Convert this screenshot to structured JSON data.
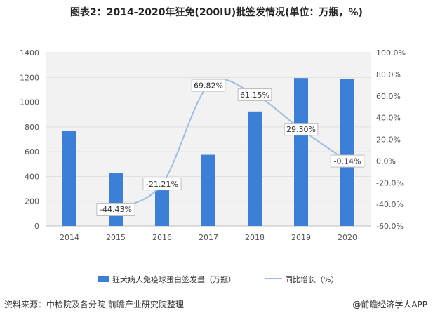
{
  "title": "图表2：2014-2020年狂免(200IU)批签发情况(单位：万瓶，%)",
  "source": "资料来源：中检院及各分院 前瞻产业研究院整理",
  "brand": "@前瞻经济学人APP",
  "colors": {
    "bar": "#3c7fd6",
    "line": "#9dbde6",
    "grid": "#dddddd",
    "plot_bg": "#f2f2f2"
  },
  "chart_data": {
    "type": "bar",
    "categories": [
      "2014",
      "2015",
      "2016",
      "2017",
      "2018",
      "2019",
      "2020"
    ],
    "series": [
      {
        "name": "狂犬病人免疫球蛋白签发量（万瓶）",
        "type": "bar",
        "axis": "left",
        "values": [
          770,
          425,
          335,
          575,
          925,
          1195,
          1190
        ]
      },
      {
        "name": "同比增长（%）",
        "type": "line",
        "axis": "right",
        "values": [
          null,
          -44.43,
          -21.21,
          69.82,
          61.15,
          29.3,
          -0.14
        ],
        "labels": [
          "",
          "-44.43%",
          "-21.21%",
          "69.82%",
          "61.15%",
          "29.30%",
          "-0.14%"
        ]
      }
    ],
    "left_axis": {
      "min": 0,
      "max": 1400,
      "step": 200,
      "ticks": [
        "0",
        "200",
        "400",
        "600",
        "800",
        "1000",
        "1200",
        "1400"
      ]
    },
    "right_axis": {
      "min": -60,
      "max": 100,
      "step": 20,
      "ticks": [
        "-60.0%",
        "-40.0%",
        "-20.0%",
        "0.0%",
        "20.0%",
        "40.0%",
        "60.0%",
        "80.0%",
        "100.0%"
      ]
    },
    "grid": true,
    "legend_position": "bottom"
  }
}
